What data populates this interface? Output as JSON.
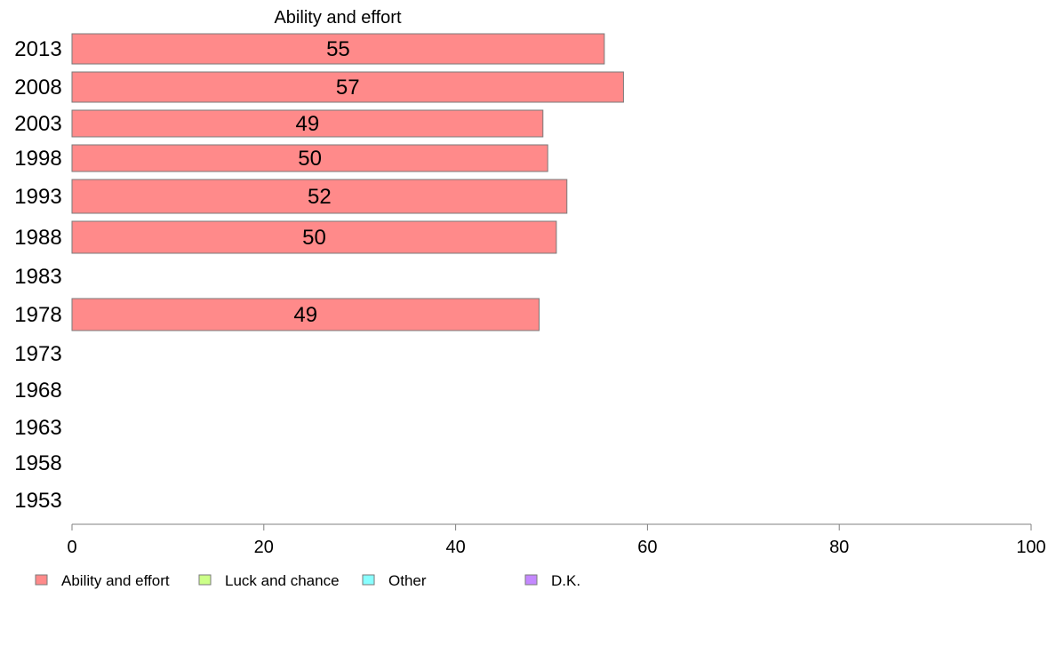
{
  "chart_data": {
    "type": "bar",
    "orientation": "horizontal",
    "title": "Ability and effort",
    "categories": [
      "2013",
      "2008",
      "2003",
      "1998",
      "1993",
      "1988",
      "1983",
      "1978",
      "1973",
      "1968",
      "1963",
      "1958",
      "1953"
    ],
    "series": [
      {
        "name": "Ability and effort",
        "color": "#FF8A8A",
        "values": [
          55.5,
          57.5,
          49.1,
          49.6,
          51.6,
          50.5,
          null,
          48.7,
          null,
          null,
          null,
          null,
          null
        ]
      }
    ],
    "data_labels": [
      "55",
      "57",
      "49",
      "50",
      "52",
      "50",
      "",
      "49",
      "",
      "",
      "",
      "",
      ""
    ],
    "xlim": [
      0,
      100
    ],
    "xticks": [
      "0",
      "20",
      "40",
      "60",
      "80",
      "100"
    ],
    "grid": false,
    "legend_position": "bottom",
    "legend": [
      {
        "label": "Ability and effort",
        "color": "#FF8A8A"
      },
      {
        "label": "Luck and chance",
        "color": "#CCFF88"
      },
      {
        "label": "Other",
        "color": "#88FFFF"
      },
      {
        "label": "D.K.",
        "color": "#C488FF"
      }
    ]
  }
}
